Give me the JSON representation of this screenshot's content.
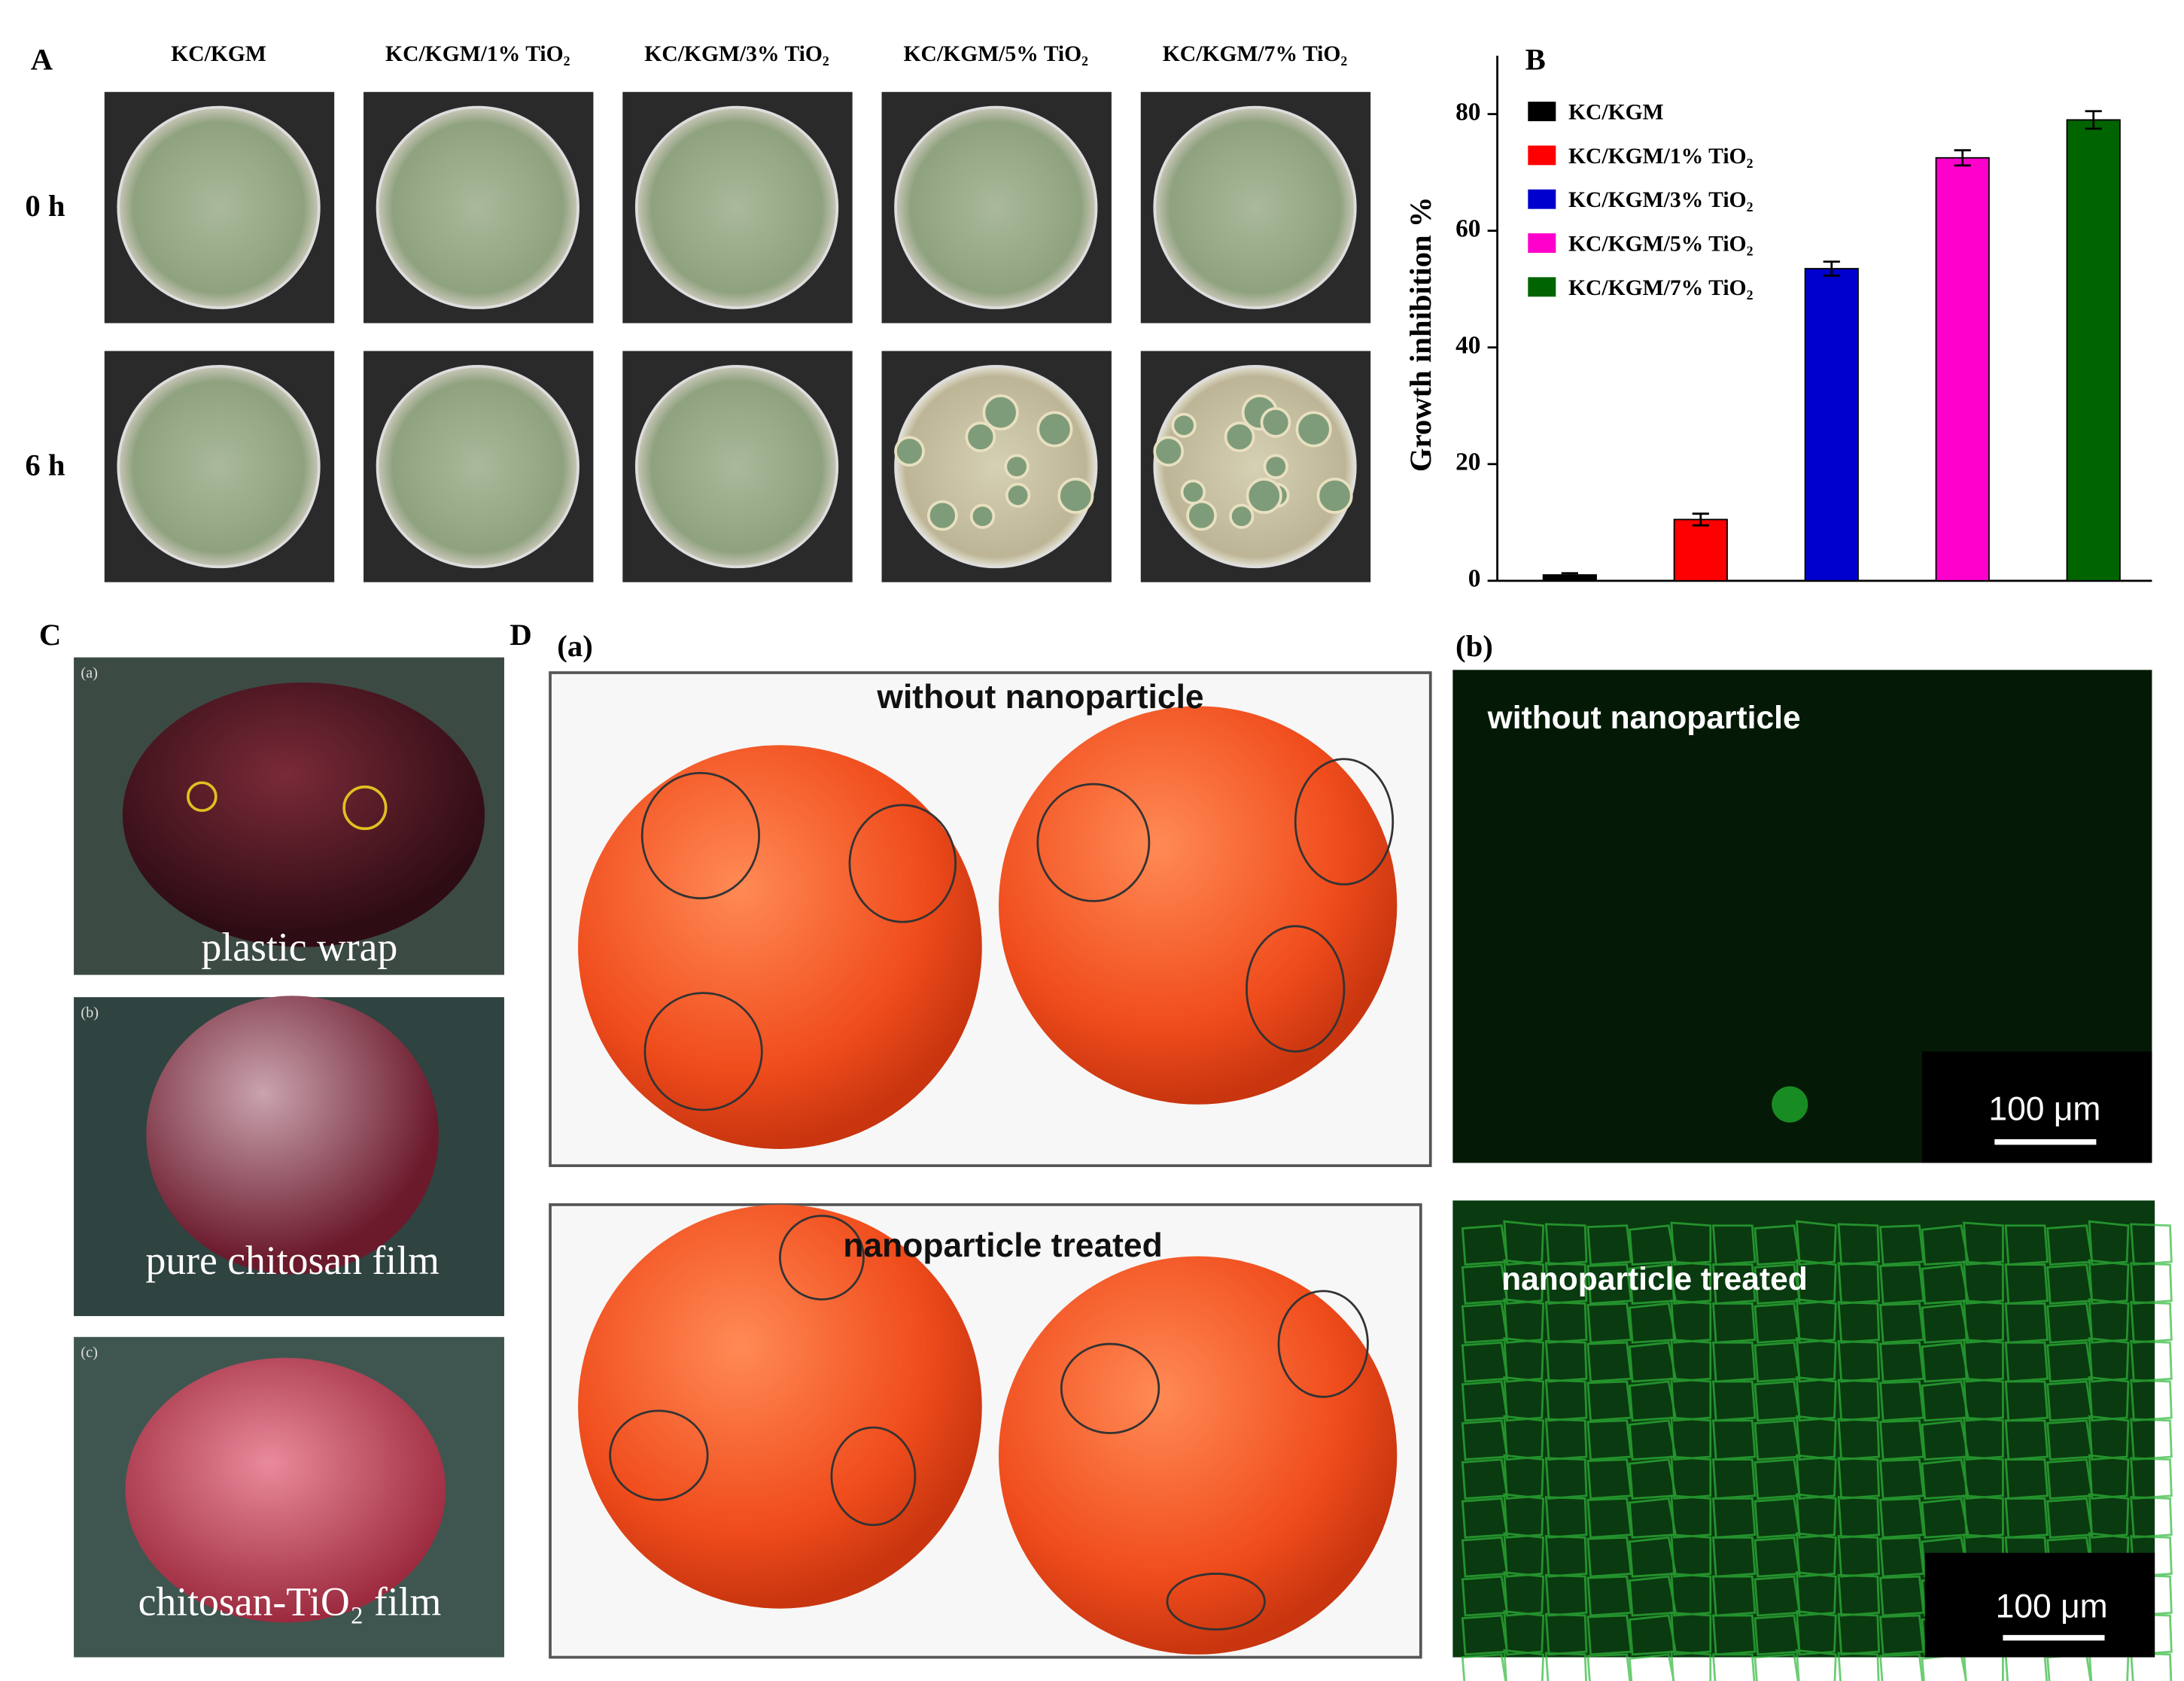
{
  "panel_a": {
    "label": "A",
    "column_headers": [
      "KC/KGM",
      "KC/KGM/1% TiO₂",
      "KC/KGM/3% TiO₂",
      "KC/KGM/5% TiO₂",
      "KC/KGM/7% TiO₂"
    ],
    "row_labels": [
      "0 h",
      "6 h"
    ]
  },
  "panel_b": {
    "label": "B"
  },
  "chart_data": {
    "type": "bar",
    "y_label": "Growth inhibition %",
    "categories": [
      "KC/KGM",
      "KC/KGM/1% TiO₂",
      "KC/KGM/3% TiO₂",
      "KC/KGM/5% TiO₂",
      "KC/KGM/7% TiO₂"
    ],
    "values": [
      1,
      10.5,
      53.5,
      72.5,
      79
    ],
    "errors": [
      0.3,
      1,
      1.2,
      1.3,
      1.5
    ],
    "colors": [
      "#000000",
      "#ff0000",
      "#0000cc",
      "#ff00cc",
      "#006400"
    ],
    "ylim": [
      0,
      90
    ],
    "yticks": [
      0,
      20,
      40,
      60,
      80
    ],
    "grid": false
  },
  "panel_c": {
    "label": "C",
    "photos": [
      {
        "tag": "(a)",
        "caption": "plastic wrap"
      },
      {
        "tag": "(b)",
        "caption": "pure chitosan film"
      },
      {
        "tag": "(c)",
        "caption": "chitosan-TiO₂ film"
      }
    ]
  },
  "panel_d": {
    "label": "D",
    "sub_a": "(a)",
    "sub_b": "(b)",
    "tomato_captions": [
      "without nanoparticle",
      "nanoparticle treated"
    ],
    "fluorescence_captions": [
      "without nanoparticle",
      "nanoparticle treated"
    ],
    "scale_bars": [
      "100 μm",
      "100 μm"
    ]
  }
}
